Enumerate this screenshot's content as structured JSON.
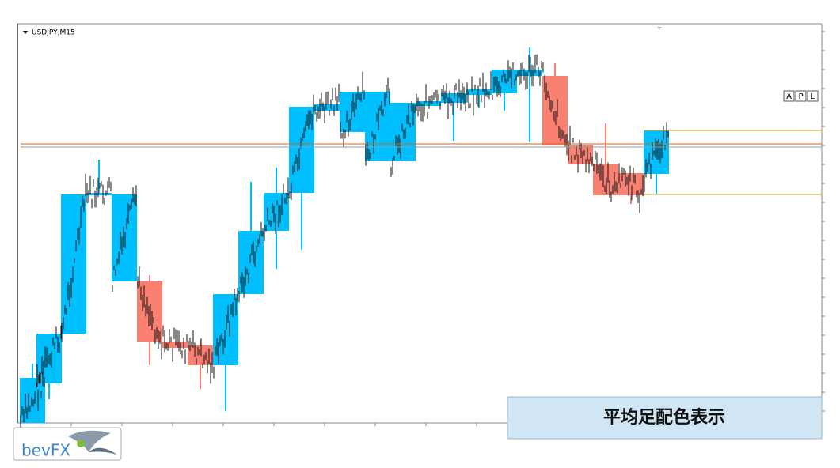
{
  "chart_window": {
    "symbol_label": "USDJPY,M15",
    "buttons": [
      "A",
      "P",
      "L"
    ]
  },
  "caption": "平均足配色表示",
  "logo": "bevFX"
}
